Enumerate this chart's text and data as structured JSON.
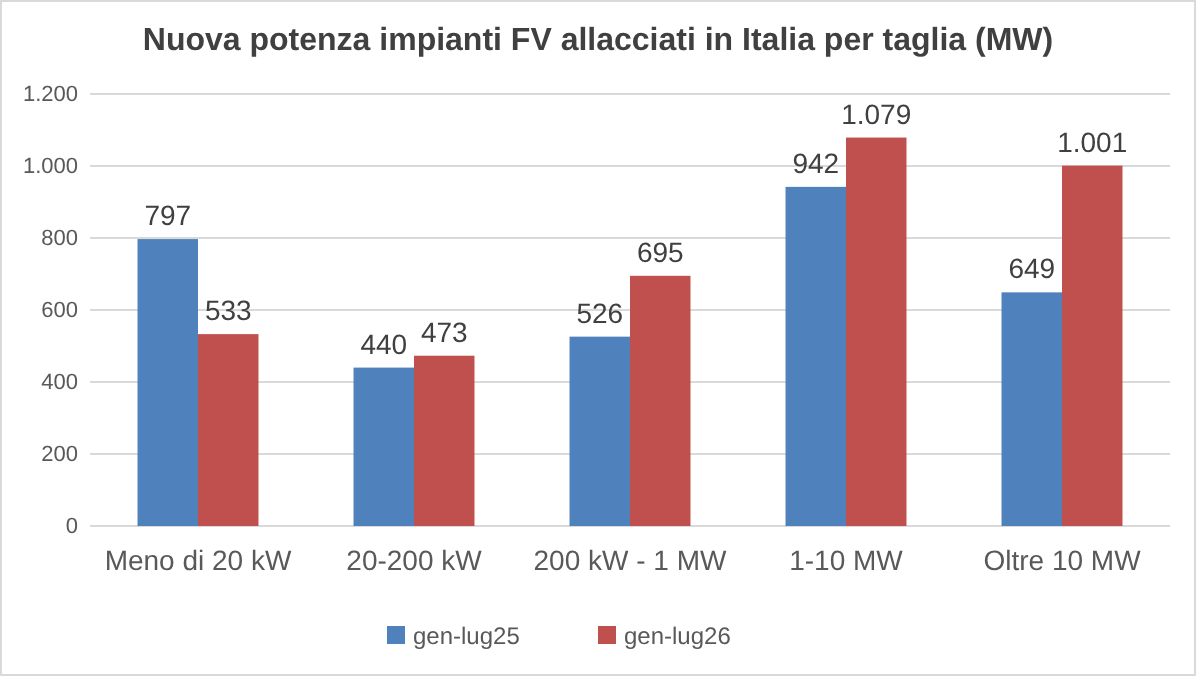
{
  "chart_data": {
    "type": "bar",
    "title": "Nuova potenza impianti FV allacciati in Italia per taglia (MW)",
    "categories": [
      "Meno di 20 kW",
      "20-200 kW",
      "200 kW - 1 MW",
      "1-10 MW",
      "Oltre 10 MW"
    ],
    "series": [
      {
        "name": "gen-lug25",
        "color": "#4f81bd",
        "values": [
          797,
          440,
          526,
          942,
          649
        ],
        "value_labels": [
          "797",
          "440",
          "526",
          "942",
          "649"
        ]
      },
      {
        "name": "gen-lug26",
        "color": "#c0504d",
        "values": [
          533,
          473,
          695,
          1079,
          1001
        ],
        "value_labels": [
          "533",
          "473",
          "695",
          "1.079",
          "1.001"
        ]
      }
    ],
    "ylim": [
      0,
      1200
    ],
    "yticks": [
      0,
      200,
      400,
      600,
      800,
      {
        "value": 1000,
        "label": "1.000"
      },
      {
        "value": 1200,
        "label": "1.200"
      }
    ],
    "grid": "y",
    "legend": "bottom"
  }
}
